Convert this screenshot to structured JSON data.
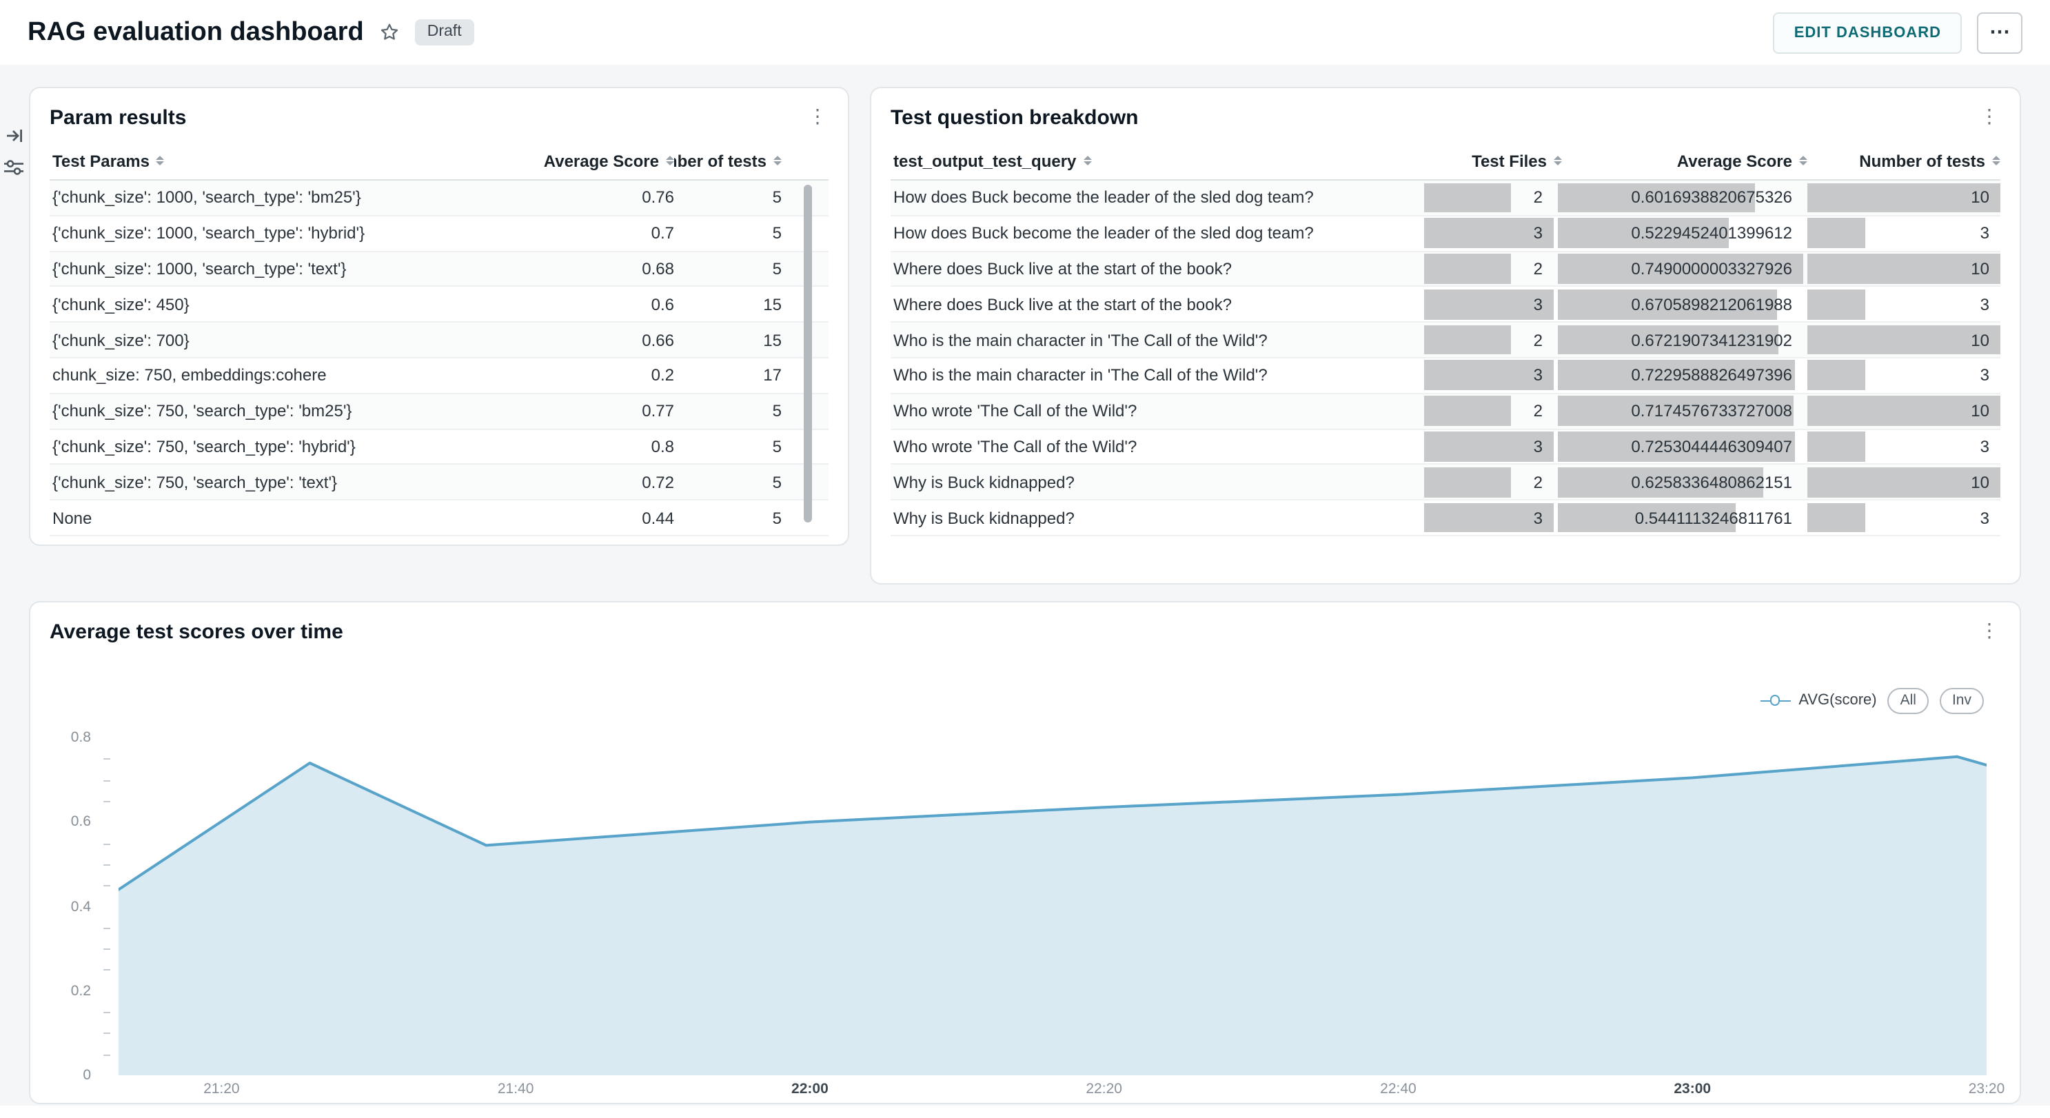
{
  "header": {
    "title": "RAG evaluation dashboard",
    "badge": "Draft",
    "edit_button": "EDIT DASHBOARD"
  },
  "icons": {
    "star": "☆",
    "panel_menu": "⋮",
    "more_options": "⋯",
    "collapse_right": "⇥",
    "filter": "⚍"
  },
  "panels": {
    "param_results": {
      "title": "Param results",
      "columns": [
        "Test Params",
        "Average Score",
        "Number of tests"
      ],
      "rows": [
        [
          "{'chunk_size': 1000, 'search_type': 'bm25'}",
          "0.76",
          "5"
        ],
        [
          "{'chunk_size': 1000, 'search_type': 'hybrid'}",
          "0.7",
          "5"
        ],
        [
          "{'chunk_size': 1000, 'search_type': 'text'}",
          "0.68",
          "5"
        ],
        [
          "{'chunk_size': 450}",
          "0.6",
          "15"
        ],
        [
          "{'chunk_size': 700}",
          "0.66",
          "15"
        ],
        [
          "chunk_size: 750, embeddings:cohere",
          "0.2",
          "17"
        ],
        [
          "{'chunk_size': 750, 'search_type': 'bm25'}",
          "0.77",
          "5"
        ],
        [
          "{'chunk_size': 750, 'search_type': 'hybrid'}",
          "0.8",
          "5"
        ],
        [
          "{'chunk_size': 750, 'search_type': 'text'}",
          "0.72",
          "5"
        ],
        [
          "None",
          "0.44",
          "5"
        ]
      ]
    },
    "question_breakdown": {
      "title": "Test question breakdown",
      "columns": [
        "test_output_test_query",
        "Test Files",
        "Average Score",
        "Number of tests"
      ],
      "rows": [
        {
          "query": "How does Buck become the leader of the sled dog team?",
          "test_files": 2,
          "avg_score": "0.6016938820675326",
          "num_tests": 10
        },
        {
          "query": "How does Buck become the leader of the sled dog team?",
          "test_files": 3,
          "avg_score": "0.5229452401399612",
          "num_tests": 3
        },
        {
          "query": "Where does Buck live at the start of the book?",
          "test_files": 2,
          "avg_score": "0.7490000003327926",
          "num_tests": 10
        },
        {
          "query": "Where does Buck live at the start of the book?",
          "test_files": 3,
          "avg_score": "0.6705898212061988",
          "num_tests": 3
        },
        {
          "query": "Who is the main character in 'The Call of the Wild'?",
          "test_files": 2,
          "avg_score": "0.6721907341231902",
          "num_tests": 10
        },
        {
          "query": "Who is the main character in 'The Call of the Wild'?",
          "test_files": 3,
          "avg_score": "0.7229588826497396",
          "num_tests": 3
        },
        {
          "query": "Who wrote 'The Call of the Wild'?",
          "test_files": 2,
          "avg_score": "0.7174576733727008",
          "num_tests": 10
        },
        {
          "query": "Who wrote 'The Call of the Wild'?",
          "test_files": 3,
          "avg_score": "0.7253044446309407",
          "num_tests": 3
        },
        {
          "query": "Why is Buck kidnapped?",
          "test_files": 2,
          "avg_score": "0.6258336480862151",
          "num_tests": 10
        },
        {
          "query": "Why is Buck kidnapped?",
          "test_files": 3,
          "avg_score": "0.5441113246811761",
          "num_tests": 3
        }
      ]
    },
    "chart_panel": {
      "title": "Average test scores over time"
    }
  },
  "chart_data": {
    "type": "area",
    "title": "Average test scores over time",
    "series": [
      {
        "name": "AVG(score)",
        "points": [
          [
            "21:13",
            0.44
          ],
          [
            "21:26",
            0.74
          ],
          [
            "21:38",
            0.545
          ],
          [
            "21:50",
            0.575
          ],
          [
            "22:00",
            0.6
          ],
          [
            "22:20",
            0.635
          ],
          [
            "22:40",
            0.665
          ],
          [
            "23:00",
            0.705
          ],
          [
            "23:18",
            0.755
          ],
          [
            "23:20",
            0.735
          ]
        ]
      }
    ],
    "x_domain": [
      "21:13",
      "23:20"
    ],
    "x_ticks": [
      {
        "label": "21:20",
        "bold": false
      },
      {
        "label": "21:40",
        "bold": false
      },
      {
        "label": "22:00",
        "bold": true
      },
      {
        "label": "22:20",
        "bold": false
      },
      {
        "label": "22:40",
        "bold": false
      },
      {
        "label": "23:00",
        "bold": true
      },
      {
        "label": "23:20",
        "bold": false
      }
    ],
    "y_ticks": [
      0,
      0.2,
      0.4,
      0.6,
      0.8
    ],
    "y_minor_step": 0.05,
    "ylim": [
      0,
      0.82
    ],
    "xlabel": "",
    "ylabel": "",
    "grid": false,
    "legend_position": "top-right",
    "legend": {
      "label": "AVG(score)",
      "buttons": [
        "All",
        "Inv"
      ]
    },
    "line_color": "#57a3c9",
    "fill_color": "#d9eaf3"
  }
}
